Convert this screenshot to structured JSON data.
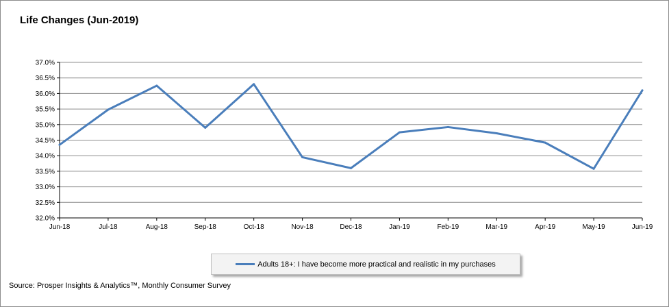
{
  "chart_data": {
    "type": "line",
    "title": "Life Changes (Jun-2019)",
    "categories": [
      "Jun-18",
      "Jul-18",
      "Aug-18",
      "Sep-18",
      "Oct-18",
      "Nov-18",
      "Dec-18",
      "Jan-19",
      "Feb-19",
      "Mar-19",
      "Apr-19",
      "May-19",
      "Jun-19"
    ],
    "series": [
      {
        "name": "Adults 18+: I have become more practical and realistic in my purchases",
        "color": "#4a7ebb",
        "values": [
          34.35,
          35.48,
          36.25,
          34.9,
          36.3,
          33.95,
          33.6,
          34.75,
          34.92,
          34.72,
          34.42,
          33.58,
          36.1
        ]
      }
    ],
    "ylim": [
      32.0,
      37.0
    ],
    "yticks": [
      "32.0%",
      "32.5%",
      "33.0%",
      "33.5%",
      "34.0%",
      "34.5%",
      "35.0%",
      "35.5%",
      "36.0%",
      "36.5%",
      "37.0%"
    ],
    "grid": true,
    "legend_position": "bottom"
  },
  "source": "Source: Prosper Insights & Analytics™, Monthly Consumer Survey"
}
